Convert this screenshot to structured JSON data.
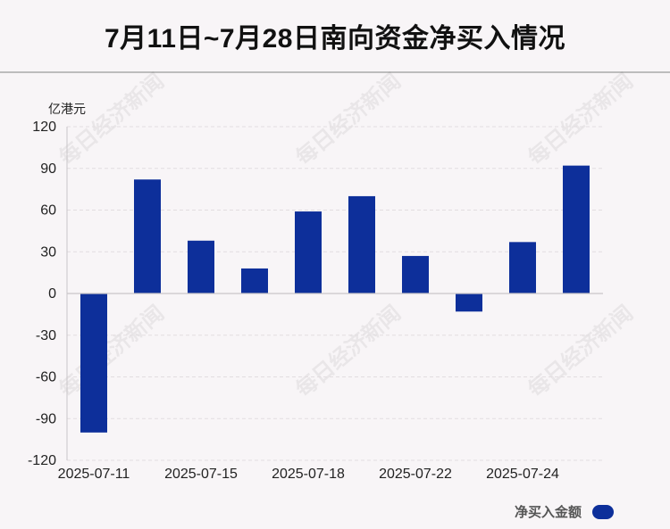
{
  "title": "7月11日~7月28日南向资金净买入情况",
  "legend_label": "净买入金额",
  "watermark": "每日经济新闻",
  "colors": {
    "bar": "#0d2f9a",
    "background": "#f8f5f7",
    "grid": "#e2dde0"
  },
  "chart_data": {
    "type": "bar",
    "ylabel": "亿港元",
    "ylim": [
      -120,
      120
    ],
    "yticks": [
      120,
      90,
      60,
      30,
      0,
      -30,
      -60,
      -90,
      -120
    ],
    "xtick_labels": [
      "2025-07-11",
      "2025-07-15",
      "2025-07-18",
      "2025-07-22",
      "2025-07-24"
    ],
    "xtick_positions": [
      0,
      2,
      4,
      6,
      8
    ],
    "series": [
      {
        "name": "净买入金额",
        "values": [
          -100,
          82,
          38,
          18,
          59,
          70,
          27,
          -13,
          37,
          92
        ]
      }
    ],
    "grid": true,
    "legend_position": "bottom-right"
  }
}
